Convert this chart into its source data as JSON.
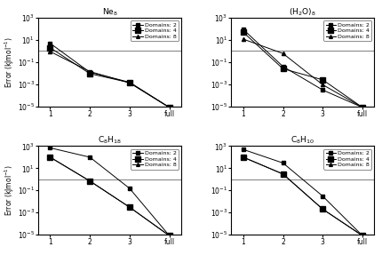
{
  "subplots": [
    {
      "title": "Ne$_8$",
      "series": [
        {
          "label": "Domains: 2",
          "x": [
            1,
            2,
            3,
            4
          ],
          "y": [
            5.0,
            0.012,
            0.0015,
            8e-06
          ]
        },
        {
          "label": "Domains: 4",
          "x": [
            1,
            2,
            3,
            4
          ],
          "y": [
            2.0,
            0.009,
            0.0014,
            8e-06
          ]
        },
        {
          "label": "Domains: 8",
          "x": [
            1,
            2,
            3,
            4
          ],
          "y": [
            0.9,
            0.014,
            0.0013,
            8e-06
          ]
        }
      ]
    },
    {
      "title": "(H$_2$O)$_8$",
      "series": [
        {
          "label": "Domains: 2",
          "x": [
            1,
            2,
            3,
            4
          ],
          "y": [
            90.0,
            0.04,
            0.0003,
            8e-06
          ]
        },
        {
          "label": "Domains: 4",
          "x": [
            1,
            2,
            3,
            4
          ],
          "y": [
            50.0,
            0.025,
            0.0025,
            8e-06
          ]
        },
        {
          "label": "Domains: 8",
          "x": [
            1,
            2,
            3,
            4
          ],
          "y": [
            12.0,
            0.6,
            0.0009,
            8e-06
          ]
        }
      ]
    },
    {
      "title": "C$_8$H$_{18}$",
      "series": [
        {
          "label": "Domains: 2",
          "x": [
            1,
            2,
            3,
            4
          ],
          "y": [
            700.0,
            100.0,
            0.15,
            8e-06
          ]
        },
        {
          "label": "Domains: 4",
          "x": [
            1,
            2,
            3,
            4
          ],
          "y": [
            100.0,
            0.7,
            0.003,
            8e-06
          ]
        },
        {
          "label": "Domains: 8",
          "x": [
            1,
            2,
            3,
            4
          ],
          "y": [
            100.0,
            0.7,
            0.003,
            8e-06
          ]
        }
      ]
    },
    {
      "title": "C$_8$H$_{10}$",
      "series": [
        {
          "label": "Domains: 2",
          "x": [
            1,
            2,
            3,
            4
          ],
          "y": [
            500.0,
            30.0,
            0.03,
            8e-06
          ]
        },
        {
          "label": "Domains: 4",
          "x": [
            1,
            2,
            3,
            4
          ],
          "y": [
            100.0,
            3.0,
            0.002,
            8e-06
          ]
        },
        {
          "label": "Domains: 8",
          "x": [
            1,
            2,
            3,
            4
          ],
          "y": [
            100.0,
            3.0,
            0.002,
            8e-06
          ]
        }
      ]
    }
  ],
  "hline_y": 1.0,
  "hline_color": "#888888",
  "ylim": [
    1e-05,
    1000.0
  ],
  "xlim": [
    0.7,
    4.3
  ],
  "xticks": [
    1,
    2,
    3,
    4
  ],
  "xticklabels": [
    "1",
    "2",
    "3",
    "full"
  ],
  "ylabel": "Error (kJmol$^{-1}$)",
  "line_color": "black",
  "markers": [
    "s",
    "s",
    "^"
  ],
  "markersizes": [
    3.0,
    4.5,
    3.0
  ],
  "fillstyles": [
    "full",
    "full",
    "full"
  ]
}
